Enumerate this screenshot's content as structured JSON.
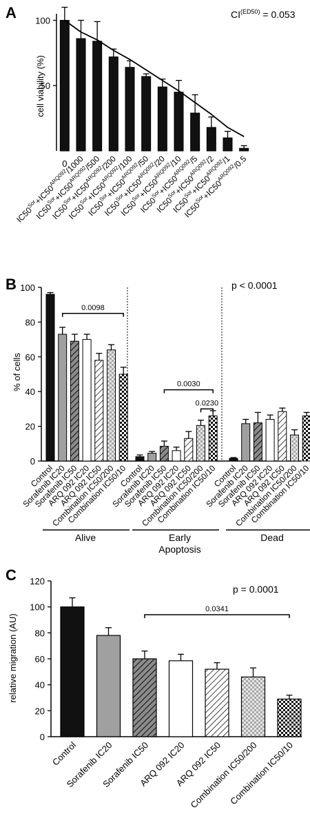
{
  "chart_data": [
    {
      "panel": "A",
      "type": "bar",
      "ylabel": "cell viability (%)",
      "ylim": [
        0,
        105
      ],
      "yticks": [
        50,
        100
      ],
      "ci_main": "CI",
      "ci_sup": "(ED50)",
      "ci_value": " = 0.053",
      "first_label": "0",
      "label_base": "IC50",
      "label_sup1": "Sor",
      "label_mid": "+IC50",
      "label_sup2": "ARQ092",
      "divisors": [
        "/1000",
        "/500",
        "/200",
        "/100",
        "/50",
        "/20",
        "/10",
        "/5",
        "/2",
        "/1",
        "/0.5"
      ],
      "values": [
        100,
        86,
        84,
        72,
        64,
        57,
        49,
        45,
        29,
        18,
        10,
        2
      ],
      "errors": [
        10,
        14,
        15,
        6,
        5,
        2,
        6,
        9,
        14,
        8,
        5,
        2
      ],
      "fit": [
        100,
        91,
        85,
        77,
        70,
        62,
        54,
        46,
        37,
        28,
        18,
        11
      ],
      "fill": "#111111"
    },
    {
      "panel": "B",
      "type": "bar",
      "ylabel": "% of cells",
      "ylim": [
        0,
        100
      ],
      "yticks": [
        0,
        20,
        40,
        60,
        80,
        100
      ],
      "p_value": "p < 0.0001",
      "categories": [
        "Control",
        "Sorafenib IC20",
        "Sorafenib IC50",
        "ARQ 092 IC20",
        "ARQ 092 IC50",
        "Combination IC50/200",
        "Combination IC50/10"
      ],
      "groups": [
        {
          "name": "Alive",
          "values": [
            96,
            73,
            69,
            70,
            58,
            64,
            50
          ],
          "errors": [
            1,
            4,
            4,
            3,
            4,
            3,
            4
          ]
        },
        {
          "name_line1": "Early",
          "name_line2": "Apoptosis",
          "values": [
            2.5,
            4.5,
            8.5,
            6,
            13,
            20.5,
            26
          ],
          "errors": [
            1,
            1,
            3,
            2,
            4,
            3,
            3
          ]
        },
        {
          "name": "Dead",
          "values": [
            1.5,
            21.5,
            22,
            24,
            28.5,
            15,
            26
          ],
          "errors": [
            0.5,
            2.5,
            6,
            2.5,
            2,
            3,
            2
          ]
        }
      ],
      "significance": [
        {
          "group": 0,
          "from": 1,
          "to": 6,
          "y": 85,
          "label": "0.0098"
        },
        {
          "group": 1,
          "from": 2,
          "to": 6,
          "y": 41,
          "label": "0.0030"
        },
        {
          "group": 1,
          "from": 5,
          "to": 6,
          "y": 30,
          "label": "0.0230"
        }
      ]
    },
    {
      "panel": "C",
      "type": "bar",
      "ylabel": "relative migration (AU)",
      "ylim": [
        0,
        120
      ],
      "yticks": [
        0,
        20,
        40,
        60,
        80,
        100,
        120
      ],
      "p_value": "p = 0.0001",
      "categories": [
        "Control",
        "Sorafenib IC20",
        "Sorafenib IC50",
        "ARQ 092 IC20",
        "ARQ 092 IC50",
        "Combination IC50/200",
        "Combination IC50/10"
      ],
      "values": [
        100,
        78,
        60,
        58.5,
        52,
        46,
        29
      ],
      "errors": [
        7,
        6,
        6,
        5,
        5,
        7,
        3
      ],
      "significance": {
        "from": 2,
        "to": 6,
        "y": 94,
        "label": "0.0341"
      }
    }
  ]
}
